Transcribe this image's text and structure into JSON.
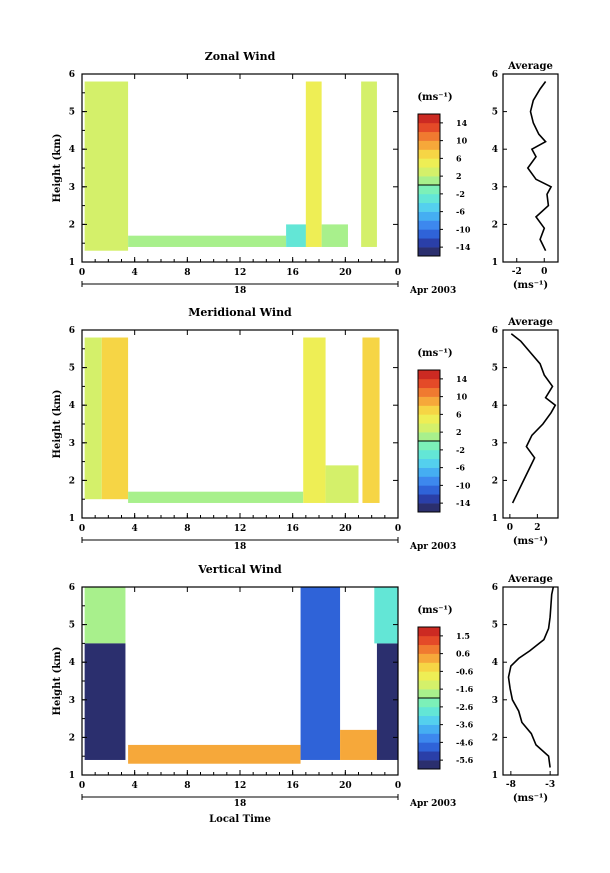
{
  "chart_data": [
    {
      "type": "heatmap",
      "panel": "zonal",
      "title": "Zonal Wind",
      "ylabel": "Height (km)",
      "xlabel": "",
      "y_ticks": [
        "1",
        "2",
        "3",
        "4",
        "5",
        "6"
      ],
      "ylim": [
        1,
        6
      ],
      "x_ticks": [
        "0",
        "4",
        "8",
        "12",
        "16",
        "20",
        "0"
      ],
      "xlim": [
        0,
        24
      ],
      "date_label": "18",
      "month_label": "Apr 2003",
      "colorbar": {
        "unit": "(ms⁻¹)",
        "ticks": [
          "14",
          "10",
          "6",
          "2",
          "-2",
          "-6",
          "-10",
          "-14"
        ],
        "range": [
          -16,
          16
        ],
        "colors": [
          "#2b2f6e",
          "#2a3fa8",
          "#2f63d8",
          "#3d88ee",
          "#45aef2",
          "#54d0ee",
          "#63e6d6",
          "#7cf0b8",
          "#a8f08c",
          "#d4f06a",
          "#eeee55",
          "#f6d545",
          "#f6a83a",
          "#f07a30",
          "#e44a28",
          "#cc2a22"
        ]
      },
      "fields": [
        {
          "x": [
            0.2,
            3.5
          ],
          "y": [
            1.3,
            5.8
          ],
          "value": 2
        },
        {
          "x": [
            3.5,
            15.5
          ],
          "y": [
            1.4,
            1.7
          ],
          "value": 0
        },
        {
          "x": [
            15.5,
            17.2
          ],
          "y": [
            1.4,
            2.0
          ],
          "value": -4
        },
        {
          "x": [
            17.0,
            18.2
          ],
          "y": [
            1.4,
            5.8
          ],
          "value": 4
        },
        {
          "x": [
            18.2,
            20.2
          ],
          "y": [
            1.4,
            2.0
          ],
          "value": 0
        },
        {
          "x": [
            21.2,
            22.4
          ],
          "y": [
            1.4,
            5.8
          ],
          "value": 2
        }
      ],
      "average": {
        "title": "Average",
        "xlabel": "(ms⁻¹)",
        "x_ticks": [
          "-2",
          "0"
        ],
        "xlim": [
          -3,
          1
        ],
        "y_ticks": [
          "1",
          "2",
          "3",
          "4",
          "5",
          "6"
        ],
        "ylim": [
          1,
          6
        ],
        "height": [
          1.3,
          1.6,
          1.9,
          2.2,
          2.5,
          2.8,
          3.0,
          3.2,
          3.5,
          3.8,
          4.0,
          4.2,
          4.4,
          4.7,
          5.0,
          5.3,
          5.6,
          5.8
        ],
        "value": [
          0.1,
          -0.3,
          0.0,
          -0.6,
          0.3,
          0.2,
          0.5,
          -0.6,
          -1.2,
          -0.6,
          -0.9,
          0.1,
          -0.4,
          -0.8,
          -1.0,
          -0.8,
          -0.3,
          0.1
        ]
      }
    },
    {
      "type": "heatmap",
      "panel": "meridional",
      "title": "Meridional Wind",
      "ylabel": "Height (km)",
      "xlabel": "",
      "y_ticks": [
        "1",
        "2",
        "3",
        "4",
        "5",
        "6"
      ],
      "ylim": [
        1,
        6
      ],
      "x_ticks": [
        "0",
        "4",
        "8",
        "12",
        "16",
        "20",
        "0"
      ],
      "xlim": [
        0,
        24
      ],
      "date_label": "18",
      "month_label": "Apr 2003",
      "colorbar": {
        "unit": "(ms⁻¹)",
        "ticks": [
          "14",
          "10",
          "6",
          "2",
          "-2",
          "-6",
          "-10",
          "-14"
        ],
        "range": [
          -16,
          16
        ],
        "colors": [
          "#2b2f6e",
          "#2a3fa8",
          "#2f63d8",
          "#3d88ee",
          "#45aef2",
          "#54d0ee",
          "#63e6d6",
          "#7cf0b8",
          "#a8f08c",
          "#d4f06a",
          "#eeee55",
          "#f6d545",
          "#f6a83a",
          "#f07a30",
          "#e44a28",
          "#cc2a22"
        ]
      },
      "fields": [
        {
          "x": [
            0.2,
            1.5
          ],
          "y": [
            1.5,
            5.8
          ],
          "value": 2
        },
        {
          "x": [
            1.5,
            3.5
          ],
          "y": [
            1.5,
            5.8
          ],
          "value": 6
        },
        {
          "x": [
            3.5,
            16.8
          ],
          "y": [
            1.4,
            1.7
          ],
          "value": 1
        },
        {
          "x": [
            16.8,
            18.5
          ],
          "y": [
            1.4,
            5.8
          ],
          "value": 5
        },
        {
          "x": [
            18.5,
            21.0
          ],
          "y": [
            1.4,
            2.4
          ],
          "value": 2
        },
        {
          "x": [
            21.3,
            22.6
          ],
          "y": [
            1.4,
            5.8
          ],
          "value": 6
        }
      ],
      "average": {
        "title": "Average",
        "xlabel": "(ms⁻¹)",
        "x_ticks": [
          "0",
          "2"
        ],
        "xlim": [
          -0.5,
          3.5
        ],
        "y_ticks": [
          "1",
          "2",
          "3",
          "4",
          "5",
          "6"
        ],
        "ylim": [
          1,
          6
        ],
        "height": [
          1.4,
          1.7,
          2.0,
          2.3,
          2.6,
          2.9,
          3.2,
          3.5,
          3.8,
          4.0,
          4.2,
          4.5,
          4.8,
          5.1,
          5.4,
          5.7,
          5.9
        ],
        "value": [
          0.2,
          0.6,
          1.0,
          1.4,
          1.8,
          1.2,
          1.6,
          2.4,
          3.0,
          3.3,
          2.6,
          3.1,
          2.5,
          2.2,
          1.5,
          0.8,
          0.1
        ]
      }
    },
    {
      "type": "heatmap",
      "panel": "vertical",
      "title": "Vertical Wind",
      "ylabel": "Height (km)",
      "xlabel": "Local Time",
      "y_ticks": [
        "1",
        "2",
        "3",
        "4",
        "5",
        "6"
      ],
      "ylim": [
        1,
        6
      ],
      "x_ticks": [
        "0",
        "4",
        "8",
        "12",
        "16",
        "20",
        "0"
      ],
      "xlim": [
        0,
        24
      ],
      "date_label": "18",
      "month_label": "Apr 2003",
      "colorbar": {
        "unit": "(ms⁻¹)",
        "ticks": [
          "1.5",
          "0.6",
          "-0.6",
          "-1.6",
          "-2.6",
          "-3.6",
          "-4.6",
          "-5.6"
        ],
        "range": [
          -6.0,
          2.0
        ],
        "colors": [
          "#2b2f6e",
          "#2a3fa8",
          "#2f63d8",
          "#3d88ee",
          "#45aef2",
          "#54d0ee",
          "#63e6d6",
          "#7cf0b8",
          "#a8f08c",
          "#d4f06a",
          "#eeee55",
          "#f6d545",
          "#f6a83a",
          "#f07a30",
          "#e44a28",
          "#cc2a22"
        ]
      },
      "fields": [
        {
          "x": [
            0.2,
            3.3
          ],
          "y": [
            4.5,
            6.0
          ],
          "value": -1.6
        },
        {
          "x": [
            0.2,
            3.3
          ],
          "y": [
            1.4,
            4.5
          ],
          "value": -5.6
        },
        {
          "x": [
            3.5,
            16.6
          ],
          "y": [
            1.3,
            1.8
          ],
          "value": 0.1
        },
        {
          "x": [
            16.6,
            19.6
          ],
          "y": [
            1.4,
            6.0
          ],
          "value": -5.0
        },
        {
          "x": [
            19.6,
            22.4
          ],
          "y": [
            1.4,
            2.2
          ],
          "value": 0.2
        },
        {
          "x": [
            22.4,
            24.0
          ],
          "y": [
            1.4,
            4.5
          ],
          "value": -5.6
        },
        {
          "x": [
            22.2,
            24.0
          ],
          "y": [
            4.5,
            6.0
          ],
          "value": -2.6
        }
      ],
      "average": {
        "title": "Average",
        "xlabel": "(ms⁻¹)",
        "x_ticks": [
          "-8",
          "-3"
        ],
        "xlim": [
          -9,
          -2
        ],
        "y_ticks": [
          "1",
          "2",
          "3",
          "4",
          "5",
          "6"
        ],
        "ylim": [
          1,
          6
        ],
        "height": [
          1.2,
          1.5,
          1.8,
          2.1,
          2.4,
          2.7,
          3.0,
          3.3,
          3.6,
          3.9,
          4.1,
          4.3,
          4.6,
          4.9,
          5.2,
          5.5,
          5.8,
          6.0
        ],
        "value": [
          -3.0,
          -3.2,
          -4.8,
          -5.4,
          -6.6,
          -7.0,
          -7.8,
          -8.1,
          -8.3,
          -8.0,
          -7.0,
          -5.6,
          -3.8,
          -3.2,
          -3.0,
          -2.9,
          -2.8,
          -2.6
        ]
      }
    }
  ]
}
